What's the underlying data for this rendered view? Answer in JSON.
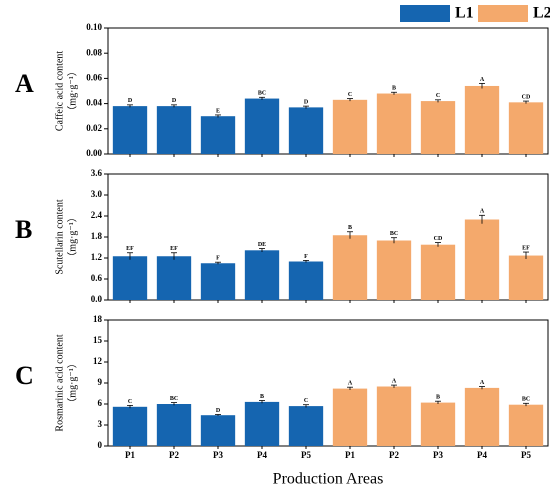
{
  "legend": {
    "position": "top right"
  },
  "x_label": "Production Areas",
  "chart_data": [
    {
      "type": "bar",
      "panel": "A",
      "y_label": "Caffeic acid content",
      "y_unit": "（mg·g⁻¹）",
      "categories": [
        "P1",
        "P2",
        "P3",
        "P4",
        "P5"
      ],
      "ylim": [
        0,
        0.1
      ],
      "yticks": [
        {
          "value": 0,
          "label": "0.00"
        },
        {
          "value": 0.02,
          "label": "0.02"
        },
        {
          "value": 0.04,
          "label": "0.04"
        },
        {
          "value": 0.06,
          "label": "0.06"
        },
        {
          "value": 0.08,
          "label": "0.08"
        },
        {
          "value": 0.1,
          "label": "0.10"
        }
      ],
      "series": [
        {
          "name": "L1",
          "color": "#1565b0",
          "values": [
            0.038,
            0.038,
            0.03,
            0.044,
            0.037
          ],
          "errors": [
            0.001,
            0.001,
            0.001,
            0.001,
            0.001
          ],
          "significance": [
            "D",
            "D",
            "E",
            "BC",
            "D"
          ]
        },
        {
          "name": "L2",
          "color": "#f4a96c",
          "values": [
            0.043,
            0.048,
            0.042,
            0.054,
            0.041
          ],
          "errors": [
            0.001,
            0.001,
            0.001,
            0.002,
            0.001
          ],
          "significance": [
            "C",
            "B",
            "C",
            "A",
            "CD"
          ]
        }
      ]
    },
    {
      "type": "bar",
      "panel": "B",
      "y_label": "Scutellarin content",
      "y_unit": "（mg·g⁻¹）",
      "categories": [
        "P1",
        "P2",
        "P3",
        "P4",
        "P5"
      ],
      "ylim": [
        0,
        3.6
      ],
      "yticks": [
        {
          "value": 0,
          "label": "0.0"
        },
        0.6,
        1.2,
        1.8,
        2.4,
        {
          "value": 3,
          "label": "3.0"
        },
        3.6
      ],
      "series": [
        {
          "name": "L1",
          "color": "#1565b0",
          "values": [
            1.25,
            1.25,
            1.05,
            1.42,
            1.1
          ],
          "errors": [
            0.1,
            0.1,
            0.03,
            0.05,
            0.03
          ],
          "significance": [
            "EF",
            "EF",
            "F",
            "DE",
            "F"
          ]
        },
        {
          "name": "L2",
          "color": "#f4a96c",
          "values": [
            1.85,
            1.7,
            1.58,
            2.3,
            1.27
          ],
          "errors": [
            0.1,
            0.08,
            0.06,
            0.12,
            0.1
          ],
          "significance": [
            "B",
            "BC",
            "CD",
            "A",
            "EF"
          ]
        }
      ]
    },
    {
      "type": "bar",
      "panel": "C",
      "y_label": "Rosmarinic acid content",
      "y_unit": "（mg·g⁻¹）",
      "categories": [
        "P1",
        "P2",
        "P3",
        "P4",
        "P5"
      ],
      "ylim": [
        0,
        18
      ],
      "yticks": [
        0,
        3,
        6,
        9,
        12,
        15,
        18
      ],
      "series": [
        {
          "name": "L1",
          "color": "#1565b0",
          "values": [
            5.6,
            6.0,
            4.4,
            6.3,
            5.7
          ],
          "errors": [
            0.2,
            0.2,
            0.1,
            0.2,
            0.2
          ],
          "significance": [
            "C",
            "BC",
            "D",
            "B",
            "C"
          ]
        },
        {
          "name": "L2",
          "color": "#f4a96c",
          "values": [
            8.2,
            8.5,
            6.2,
            8.3,
            5.9
          ],
          "errors": [
            0.2,
            0.2,
            0.2,
            0.2,
            0.2
          ],
          "significance": [
            "A",
            "A",
            "B",
            "A",
            "BC"
          ]
        }
      ]
    }
  ]
}
